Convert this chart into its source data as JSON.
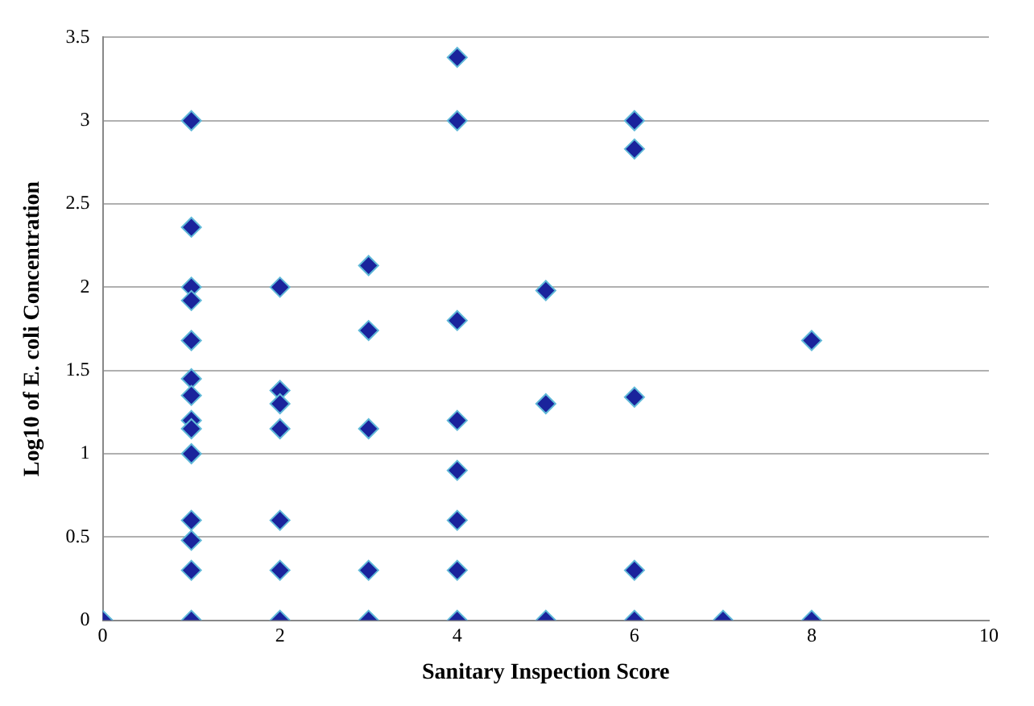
{
  "chart_data": {
    "type": "scatter",
    "xlabel": "Sanitary Inspection Score",
    "ylabel": "Log10 of E. coli Concentration",
    "series": [
      {
        "color": "#1a239c",
        "x": [
          0,
          1,
          1,
          1,
          1,
          1,
          1,
          1,
          1,
          1,
          1,
          1,
          1,
          1,
          1,
          2,
          2,
          2,
          2,
          2,
          2,
          2,
          3,
          3,
          3,
          3,
          3,
          4,
          4,
          4,
          4,
          4,
          4,
          4,
          4,
          5,
          5,
          5,
          6,
          6,
          6,
          6,
          6,
          7,
          8,
          8
        ],
        "values": [
          0,
          3,
          2.36,
          2,
          1.92,
          1.68,
          1.45,
          1.35,
          1.2,
          1.15,
          1,
          0.6,
          0.48,
          0.3,
          0,
          2,
          1.38,
          1.3,
          1.15,
          0.6,
          0.3,
          0,
          2.13,
          1.74,
          1.15,
          0.3,
          0,
          3.38,
          3,
          1.8,
          1.2,
          0.9,
          0.6,
          0.3,
          0,
          1.98,
          1.3,
          0,
          3,
          2.83,
          1.34,
          0.3,
          0,
          0,
          1.68,
          0
        ]
      }
    ],
    "xlim": [
      0,
      10
    ],
    "xticks": [
      0,
      2,
      4,
      6,
      8,
      10
    ],
    "ylim": [
      0,
      3.5
    ],
    "yticks": [
      0,
      0.5,
      1,
      1.5,
      2,
      2.5,
      3,
      3.5
    ],
    "grid": "y",
    "marker": "diamond",
    "legend": false
  }
}
